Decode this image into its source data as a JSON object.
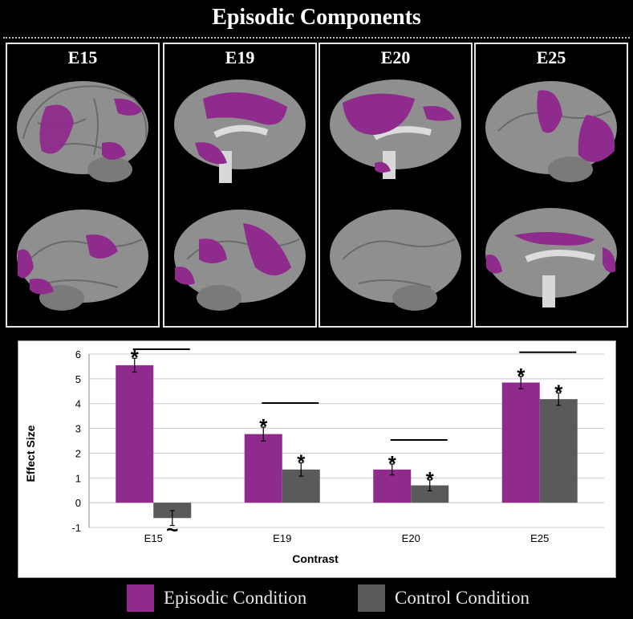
{
  "title": "Episodic Components",
  "panels": [
    {
      "label": "E15"
    },
    {
      "label": "E19"
    },
    {
      "label": "E20"
    },
    {
      "label": "E25"
    }
  ],
  "colors": {
    "episodic": "#8e2b8c",
    "control": "#5a5a5a",
    "brain": "#8f8f8f",
    "activation": "#8e2b8c"
  },
  "chart_data": {
    "type": "bar",
    "categories": [
      "E15",
      "E19",
      "E20",
      "E25"
    ],
    "xlabel": "Contrast",
    "ylabel": "Effect Size",
    "ylim": [
      -1,
      6
    ],
    "yticks": [
      -1,
      0,
      1,
      2,
      3,
      4,
      5,
      6
    ],
    "grid": true,
    "series": [
      {
        "name": "Episodic Condition",
        "values": [
          5.55,
          2.77,
          1.34,
          4.85
        ],
        "errors": [
          0.28,
          0.28,
          0.22,
          0.25
        ],
        "stars": [
          "*",
          "*",
          "*",
          "*"
        ]
      },
      {
        "name": "Control Condition",
        "values": [
          -0.62,
          1.34,
          0.7,
          4.18
        ],
        "errors": [
          0.3,
          0.27,
          0.22,
          0.25
        ],
        "stars": [
          "~",
          "*",
          "*",
          "*"
        ]
      }
    ],
    "significance_bars": [
      true,
      true,
      true,
      true
    ],
    "legend_position": "bottom"
  }
}
